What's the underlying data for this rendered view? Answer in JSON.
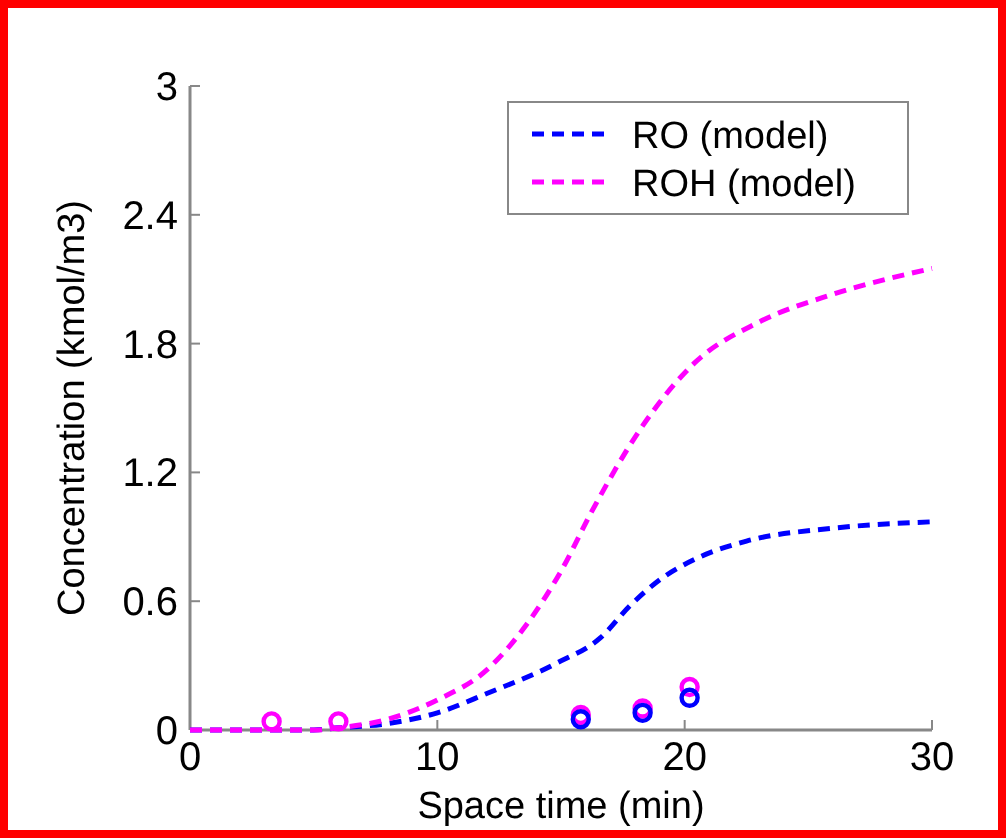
{
  "chart_data": {
    "type": "line",
    "xlabel": "Space time (min)",
    "ylabel": "Concentration (kmol/m3)",
    "xlim": [
      0,
      30
    ],
    "ylim": [
      0,
      3
    ],
    "xticks": [
      0,
      10,
      20,
      30
    ],
    "yticks": [
      0,
      0.6,
      1.2,
      1.8,
      2.4,
      3
    ],
    "legend": "top right",
    "grid": false,
    "series": [
      {
        "name": "RO (model)",
        "color": "#0000ff",
        "line_style": "dashed",
        "marker": "none",
        "x": [
          0,
          5,
          6,
          8,
          10,
          12,
          14.8,
          16.6,
          17.8,
          19,
          20.5,
          22.5,
          26,
          30
        ],
        "values": [
          0,
          0,
          0.01,
          0.03,
          0.08,
          0.17,
          0.31,
          0.43,
          0.58,
          0.7,
          0.8,
          0.88,
          0.94,
          0.97
        ]
      },
      {
        "name": "ROH (model)",
        "color": "#ff00ff",
        "line_style": "dashed",
        "marker": "none",
        "x": [
          0,
          5,
          6,
          8,
          10,
          12,
          13.6,
          15,
          16.3,
          18.2,
          20.4,
          23,
          26,
          30
        ],
        "values": [
          0,
          0,
          0.01,
          0.05,
          0.14,
          0.28,
          0.49,
          0.74,
          1.03,
          1.4,
          1.71,
          1.9,
          2.03,
          2.15
        ]
      },
      {
        "color": "#ff00ff",
        "type": "scatter",
        "marker": "circle",
        "x": [
          3.3,
          6,
          15.8,
          18.3,
          20.2
        ],
        "values": [
          0.04,
          0.04,
          0.07,
          0.1,
          0.2
        ]
      },
      {
        "color": "#0000ff",
        "type": "scatter",
        "marker": "circle",
        "x": [
          15.8,
          18.3,
          20.2
        ],
        "values": [
          0.05,
          0.08,
          0.15
        ]
      }
    ]
  }
}
